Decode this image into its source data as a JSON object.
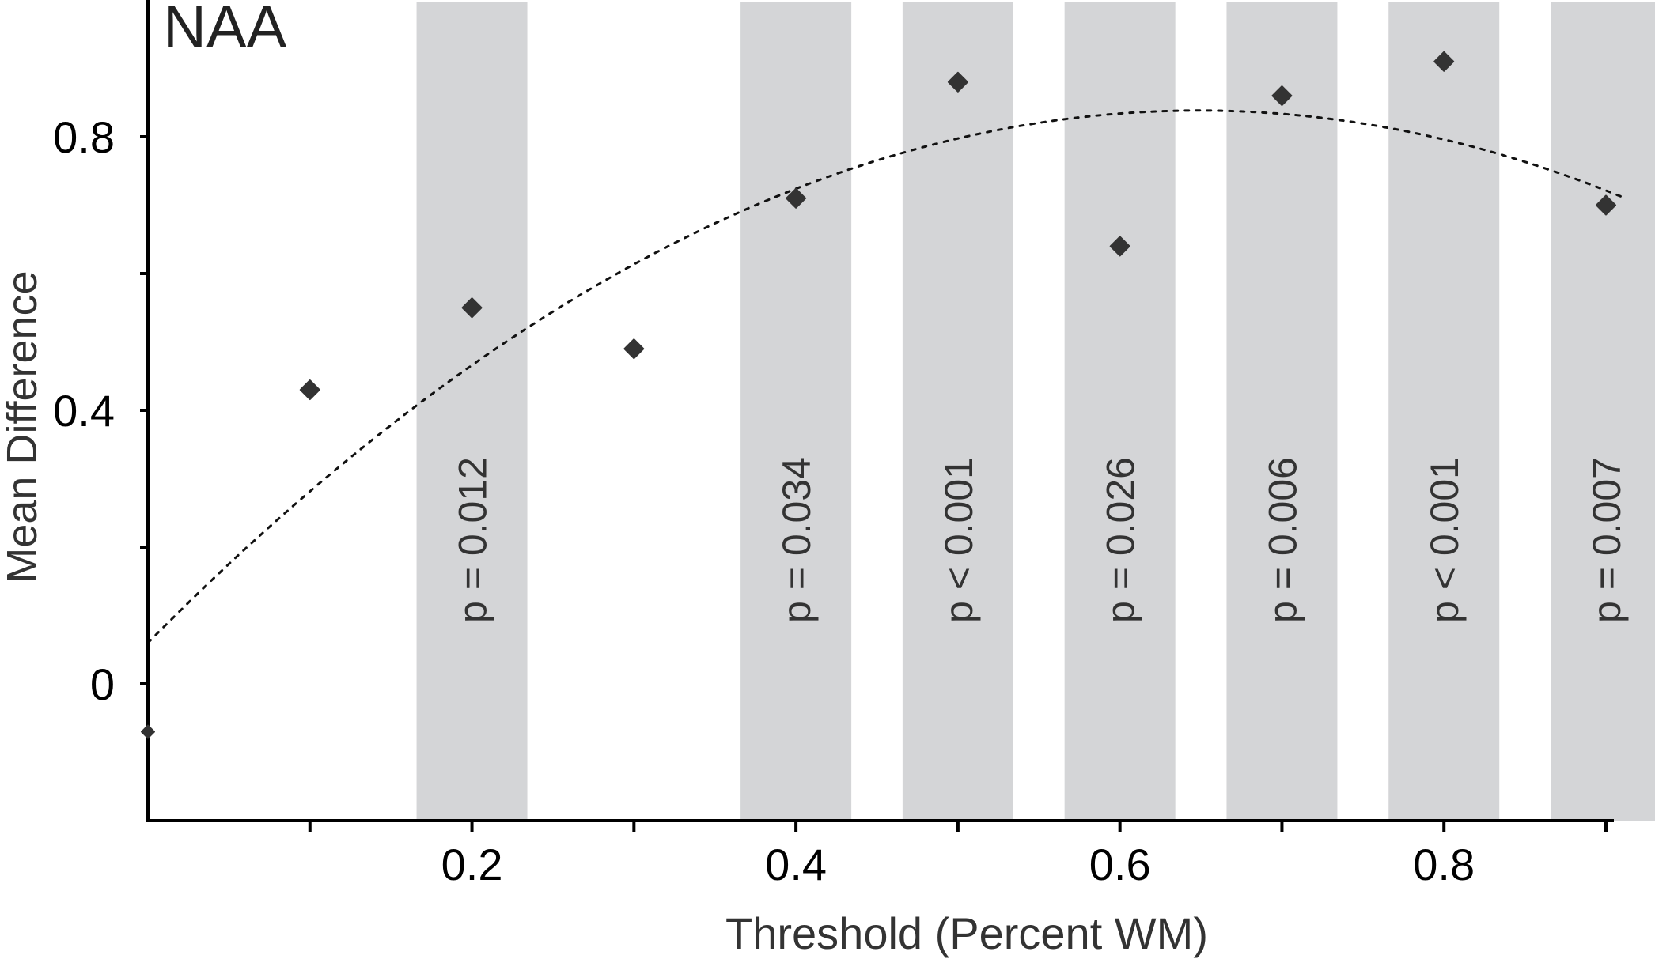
{
  "chart_data": {
    "type": "scatter",
    "title": "NAA",
    "xlabel": "Threshold (Percent WM)",
    "ylabel": "Mean Difference",
    "xlim": [
      0.0,
      0.9
    ],
    "ylim": [
      -0.2,
      1.0
    ],
    "x_ticks": [
      0.1,
      0.2,
      0.3,
      0.4,
      0.5,
      0.6,
      0.7,
      0.8,
      0.9
    ],
    "x_tick_labels": [
      {
        "value": 0.2,
        "label": "0.2"
      },
      {
        "value": 0.4,
        "label": "0.4"
      },
      {
        "value": 0.6,
        "label": "0.6"
      },
      {
        "value": 0.8,
        "label": "0.8"
      }
    ],
    "y_ticks": [
      0.0,
      0.2,
      0.4,
      0.6,
      0.8
    ],
    "y_tick_labels": [
      {
        "value": 0.0,
        "label": "0"
      },
      {
        "value": 0.4,
        "label": "0.4"
      },
      {
        "value": 0.8,
        "label": "0.8"
      }
    ],
    "grid": false,
    "marker_color": "#333333",
    "band_color": "#d4d5d7",
    "points": [
      {
        "x": 0.0,
        "y": -0.07
      },
      {
        "x": 0.1,
        "y": 0.43
      },
      {
        "x": 0.2,
        "y": 0.55
      },
      {
        "x": 0.3,
        "y": 0.49
      },
      {
        "x": 0.4,
        "y": 0.71
      },
      {
        "x": 0.5,
        "y": 0.88
      },
      {
        "x": 0.6,
        "y": 0.64
      },
      {
        "x": 0.7,
        "y": 0.86
      },
      {
        "x": 0.8,
        "y": 0.91
      },
      {
        "x": 0.9,
        "y": 0.7
      }
    ],
    "trend": {
      "type": "quadratic",
      "style": "dotted",
      "coefficients": [
        0.06,
        2.4,
        -1.85
      ],
      "x_range": [
        0.0,
        0.91
      ]
    },
    "significance_bands": [
      {
        "x": 0.2,
        "label": "p = 0.012"
      },
      {
        "x": 0.4,
        "label": "p = 0.034"
      },
      {
        "x": 0.5,
        "label": "p < 0.001"
      },
      {
        "x": 0.6,
        "label": "p = 0.026"
      },
      {
        "x": 0.7,
        "label": "p = 0.006"
      },
      {
        "x": 0.8,
        "label": "p < 0.001"
      },
      {
        "x": 0.9,
        "label": "p = 0.007"
      }
    ]
  }
}
